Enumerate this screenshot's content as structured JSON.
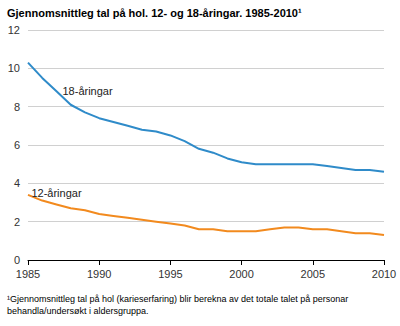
{
  "chart_data": {
    "type": "line",
    "title": "Gjennomsnittleg tal på hol. 12- og 18-åringar. 1985-2010¹",
    "footnote": "¹Gjennomsnittleg tal på hol (karieserfaring) blir berekna av det totale talet på personar behandla/undersøkt i aldersgruppa.",
    "x": [
      1985,
      1986,
      1987,
      1988,
      1989,
      1990,
      1991,
      1992,
      1993,
      1994,
      1995,
      1996,
      1997,
      1998,
      1999,
      2000,
      2001,
      2002,
      2003,
      2004,
      2005,
      2006,
      2007,
      2008,
      2009,
      2010
    ],
    "series": [
      {
        "name": "18-åringar",
        "color": "#2f8bc9",
        "values": [
          10.3,
          9.5,
          8.8,
          8.1,
          7.7,
          7.4,
          7.2,
          7.0,
          6.8,
          6.7,
          6.5,
          6.2,
          5.8,
          5.6,
          5.3,
          5.1,
          5.0,
          5.0,
          5.0,
          5.0,
          5.0,
          4.9,
          4.8,
          4.7,
          4.7,
          4.6
        ]
      },
      {
        "name": "12-åringar",
        "color": "#f28a1e",
        "values": [
          3.4,
          3.1,
          2.9,
          2.7,
          2.6,
          2.4,
          2.3,
          2.2,
          2.1,
          2.0,
          1.9,
          1.8,
          1.6,
          1.6,
          1.5,
          1.5,
          1.5,
          1.6,
          1.7,
          1.7,
          1.6,
          1.6,
          1.5,
          1.4,
          1.4,
          1.3
        ]
      }
    ],
    "xlim": [
      1985,
      2010
    ],
    "xticks": [
      1985,
      1990,
      1995,
      2000,
      2005,
      2010
    ],
    "ylim": [
      0,
      12
    ],
    "yticks": [
      0,
      2,
      4,
      6,
      8,
      10,
      12
    ],
    "grid": true
  }
}
